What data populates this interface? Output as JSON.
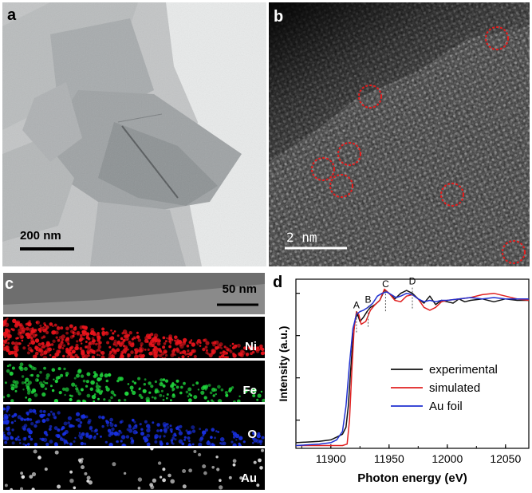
{
  "panel_a": {
    "label": "a",
    "scale_bar": "200 nm"
  },
  "panel_b": {
    "label": "b",
    "scale_bar": "2 nm"
  },
  "panel_c": {
    "label": "c",
    "scale_bar": "50 nm",
    "maps": [
      {
        "element": "Ni",
        "color": "#e8141c"
      },
      {
        "element": "Fe",
        "color": "#1fd43c"
      },
      {
        "element": "O",
        "color": "#1830e0"
      },
      {
        "element": "Au",
        "color": "#e6e6e6"
      }
    ]
  },
  "panel_d": {
    "label": "d"
  },
  "chart_data": {
    "type": "line",
    "xlabel": "Photon energy (eV)",
    "ylabel": "Intensity (a.u.)",
    "xlim": [
      11870,
      12070
    ],
    "ylim": [
      0,
      1.2
    ],
    "x_ticks": [
      11900,
      11950,
      12000,
      12050
    ],
    "peak_labels": [
      {
        "text": "A",
        "x": 11922
      },
      {
        "text": "B",
        "x": 11932
      },
      {
        "text": "C",
        "x": 11947
      },
      {
        "text": "D",
        "x": 11970
      }
    ],
    "legend_position": "lower-right",
    "series": [
      {
        "name": "experimental",
        "color": "#111111",
        "x": [
          11870,
          11890,
          11900,
          11905,
          11910,
          11913,
          11915,
          11917,
          11919,
          11921,
          11923,
          11925,
          11928,
          11931,
          11934,
          11938,
          11942,
          11946,
          11950,
          11955,
          11960,
          11965,
          11970,
          11975,
          11980,
          11985,
          11990,
          11995,
          12000,
          12005,
          12010,
          12015,
          12020,
          12030,
          12040,
          12050,
          12060,
          12070
        ],
        "y": [
          0.04,
          0.05,
          0.06,
          0.08,
          0.1,
          0.15,
          0.3,
          0.55,
          0.78,
          0.92,
          0.95,
          0.9,
          0.93,
          0.97,
          1.0,
          1.02,
          1.05,
          1.12,
          1.1,
          1.06,
          1.1,
          1.12,
          1.1,
          1.06,
          1.03,
          1.08,
          1.02,
          1.05,
          1.04,
          1.03,
          1.06,
          1.04,
          1.05,
          1.06,
          1.04,
          1.06,
          1.05,
          1.05
        ]
      },
      {
        "name": "simulated",
        "color": "#e02020",
        "x": [
          11870,
          11890,
          11900,
          11905,
          11910,
          11914,
          11916,
          11918,
          11920,
          11922,
          11924,
          11926,
          11930,
          11934,
          11938,
          11942,
          11946,
          11950,
          11955,
          11960,
          11965,
          11970,
          11975,
          11980,
          11985,
          11990,
          11995,
          12000,
          12010,
          12020,
          12030,
          12040,
          12050,
          12060,
          12070
        ],
        "y": [
          0.02,
          0.02,
          0.02,
          0.02,
          0.02,
          0.03,
          0.2,
          0.55,
          0.85,
          0.97,
          0.95,
          0.88,
          0.9,
          0.98,
          1.02,
          1.05,
          1.13,
          1.1,
          1.05,
          1.04,
          1.08,
          1.09,
          1.06,
          1.0,
          0.98,
          1.0,
          1.04,
          1.05,
          1.06,
          1.07,
          1.09,
          1.1,
          1.08,
          1.06,
          1.05
        ]
      },
      {
        "name": "Au foil",
        "color": "#2030d0",
        "x": [
          11870,
          11890,
          11900,
          11905,
          11910,
          11913,
          11916,
          11919,
          11922,
          11925,
          11928,
          11932,
          11936,
          11940,
          11944,
          11948,
          11952,
          11956,
          11960,
          11965,
          11970,
          11975,
          11980,
          11985,
          11990,
          11995,
          12000,
          12010,
          12020,
          12030,
          12040,
          12050,
          12060,
          12070
        ],
        "y": [
          0.02,
          0.03,
          0.04,
          0.06,
          0.12,
          0.3,
          0.6,
          0.85,
          0.95,
          0.97,
          0.98,
          1.0,
          1.03,
          1.08,
          1.1,
          1.11,
          1.09,
          1.07,
          1.08,
          1.1,
          1.09,
          1.06,
          1.04,
          1.05,
          1.04,
          1.05,
          1.05,
          1.06,
          1.07,
          1.06,
          1.07,
          1.06,
          1.06,
          1.06
        ]
      }
    ]
  }
}
